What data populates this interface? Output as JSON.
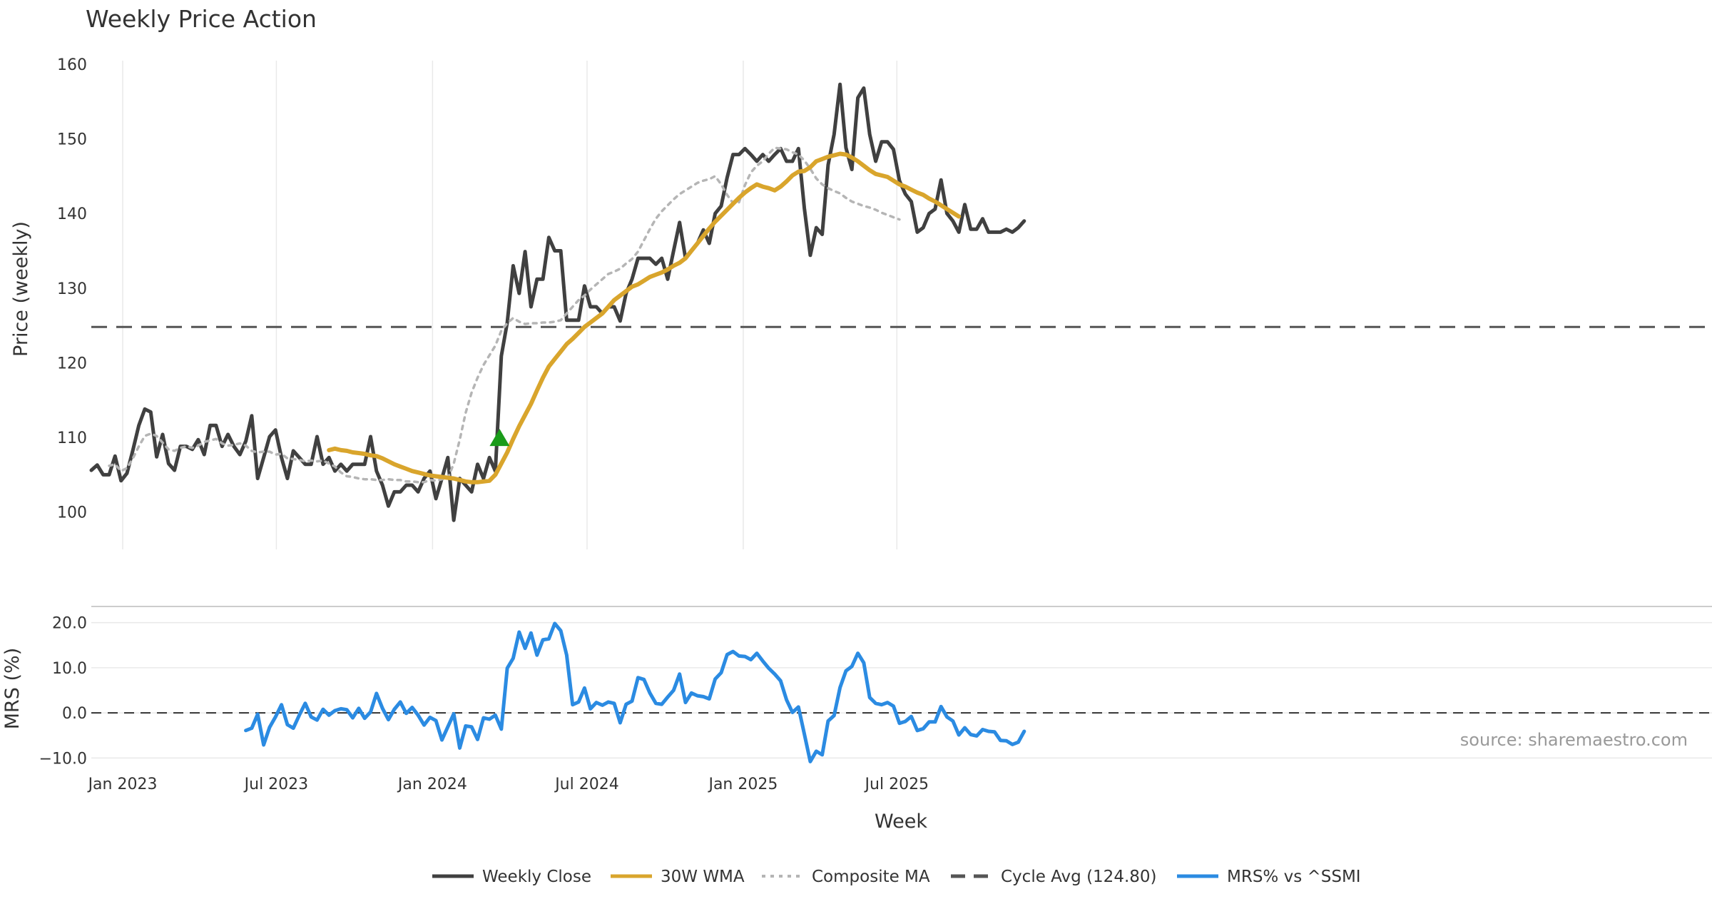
{
  "chart_data": [
    {
      "type": "line",
      "title": "Weekly Price Action",
      "xlabel": "",
      "ylabel": "Price (weekly)",
      "ylim": [
        95,
        160
      ],
      "yticks": [
        100,
        110,
        120,
        130,
        140,
        150,
        160
      ],
      "x_start": "2022-11-25",
      "x_step_days": 7,
      "x_tick_labels": [
        "Jan 2023",
        "Jul 2023",
        "Jan 2024",
        "Jul 2024",
        "Jan 2025",
        "Jul 2025"
      ],
      "x_tick_dates": [
        "2023-01-01",
        "2023-07-01",
        "2024-01-01",
        "2024-07-01",
        "2025-01-01",
        "2025-07-01"
      ],
      "grid": true,
      "reference_line": {
        "name": "Cycle Avg (124.80)",
        "value": 124.8
      },
      "markers": [
        {
          "type": "buy-signal",
          "date": "2024-03-20",
          "value": 110
        }
      ],
      "series": [
        {
          "name": "Weekly Close",
          "color": "#404040",
          "style": "solid",
          "start_index": 0,
          "values": [
            105.6,
            106.3,
            105.0,
            105.0,
            107.5,
            104.2,
            105.2,
            108.3,
            111.6,
            113.8,
            113.4,
            107.4,
            110.4,
            106.5,
            105.6,
            108.8,
            108.8,
            108.4,
            109.7,
            107.7,
            111.6,
            111.6,
            108.8,
            110.4,
            108.8,
            107.7,
            109.5,
            112.9,
            104.5,
            107.3,
            110.1,
            111.0,
            107.3,
            104.5,
            108.2,
            107.3,
            106.4,
            106.4,
            110.1,
            106.4,
            107.3,
            105.5,
            106.4,
            105.5,
            106.4,
            106.4,
            106.4,
            110.1,
            105.5,
            103.6,
            100.8,
            102.7,
            102.7,
            103.6,
            103.6,
            102.7,
            104.5,
            105.5,
            101.8,
            104.5,
            107.3,
            98.9,
            104.5,
            103.6,
            102.7,
            106.4,
            104.5,
            107.3,
            105.5,
            120.9,
            125.4,
            133.0,
            129.3,
            134.9,
            127.5,
            131.2,
            131.2,
            136.8,
            135.0,
            135.0,
            125.7,
            125.7,
            125.7,
            130.3,
            127.5,
            127.5,
            126.6,
            127.5,
            127.5,
            125.6,
            129.3,
            131.2,
            134.0,
            134.0,
            134.0,
            133.2,
            134.0,
            131.2,
            135.0,
            138.8,
            134.0,
            135.0,
            136.0,
            137.8,
            136.0,
            140.0,
            141.0,
            144.8,
            147.9,
            147.9,
            148.7,
            147.9,
            147.0,
            147.9,
            147.0,
            147.9,
            148.7,
            147.0,
            147.0,
            148.7,
            140.7,
            134.4,
            138.1,
            137.2,
            146.5,
            150.6,
            157.3,
            148.8,
            145.9,
            155.5,
            156.8,
            150.6,
            147.0,
            149.6,
            149.6,
            148.6,
            144.4,
            142.6,
            141.6,
            137.5,
            138.1,
            140.0,
            140.6,
            144.5,
            140.0,
            139.0,
            137.5,
            141.2,
            137.9,
            137.9,
            139.3,
            137.5,
            137.5,
            137.5,
            137.9,
            137.5,
            138.1,
            139.0
          ]
        },
        {
          "name": "30W WMA",
          "color": "#d9a52c",
          "style": "solid",
          "start_index": 40,
          "values": [
            108.3,
            108.5,
            108.3,
            108.2,
            108.0,
            107.9,
            107.8,
            107.6,
            107.5,
            107.2,
            106.8,
            106.4,
            106.1,
            105.8,
            105.5,
            105.3,
            105.1,
            104.9,
            104.8,
            104.7,
            104.6,
            104.5,
            104.3,
            104.1,
            104.0,
            104.0,
            104.1,
            104.2,
            105.0,
            106.5,
            108.0,
            109.8,
            111.5,
            113.0,
            114.5,
            116.3,
            118.0,
            119.5,
            120.5,
            121.5,
            122.5,
            123.2,
            124.0,
            124.8,
            125.4,
            126.0,
            126.6,
            127.5,
            128.4,
            129.0,
            129.6,
            130.2,
            130.5,
            131.0,
            131.5,
            131.8,
            132.1,
            132.5,
            133.0,
            133.4,
            134.0,
            135.0,
            136.0,
            137.0,
            138.0,
            138.9,
            139.7,
            140.5,
            141.3,
            142.1,
            142.8,
            143.4,
            143.9,
            143.6,
            143.4,
            143.1,
            143.6,
            144.3,
            145.1,
            145.6,
            145.7,
            146.2,
            147.0,
            147.3,
            147.6,
            147.8,
            148.0,
            147.9,
            147.5,
            147.0,
            146.4,
            145.8,
            145.3,
            145.1,
            144.9,
            144.4,
            143.9,
            143.6,
            143.2,
            142.8,
            142.5,
            142.0,
            141.6,
            141.1,
            140.6,
            140.1,
            139.6
          ]
        },
        {
          "name": "Composite MA",
          "color": "#b5b5b5",
          "style": "dotted",
          "start_index": 3,
          "values": [
            106.2,
            106.4,
            105.5,
            105.9,
            107.2,
            108.8,
            110.2,
            110.5,
            110.2,
            109.3,
            108.4,
            108.2,
            108.6,
            108.8,
            108.6,
            108.9,
            109.4,
            109.6,
            109.8,
            109.2,
            108.9,
            109.0,
            109.2,
            108.9,
            108.2,
            108.0,
            108.1,
            108.1,
            107.7,
            107.8,
            107.2,
            107.1,
            107.0,
            106.8,
            106.9,
            106.8,
            106.9,
            106.5,
            106.1,
            105.3,
            104.8,
            104.7,
            104.5,
            104.4,
            104.4,
            104.3,
            104.3,
            104.4,
            104.3,
            104.3,
            104.1,
            104.1,
            104.0,
            104.0,
            104.3,
            104.2,
            104.4,
            104.5,
            106.5,
            109.7,
            113.3,
            116.0,
            118.0,
            119.7,
            121.0,
            122.3,
            124.3,
            125.3,
            126.0,
            125.5,
            125.2,
            125.3,
            125.3,
            125.4,
            125.4,
            125.5,
            125.7,
            126.6,
            127.5,
            128.4,
            129.0,
            129.8,
            130.5,
            131.2,
            131.9,
            132.2,
            132.6,
            133.3,
            133.9,
            134.9,
            136.4,
            137.9,
            139.3,
            140.3,
            141.1,
            141.9,
            142.6,
            143.1,
            143.6,
            144.1,
            144.4,
            144.6,
            145.0,
            143.9,
            142.5,
            141.4,
            141.5,
            143.8,
            145.5,
            146.4,
            147.0,
            148.0,
            148.8,
            148.7,
            148.6,
            148.2,
            147.9,
            147.1,
            146.0,
            144.7,
            143.9,
            143.4,
            143.0,
            142.7,
            142.1,
            141.6,
            141.3,
            141.0,
            140.8,
            140.5,
            140.1,
            139.8,
            139.5,
            139.2
          ]
        }
      ]
    },
    {
      "type": "line",
      "xlabel": "Week",
      "ylabel": "MRS (%)",
      "ylim": [
        -12,
        22
      ],
      "yticks": [
        20,
        10,
        0,
        -10
      ],
      "ytick_labels": [
        "20.0",
        "10.0",
        "0.0",
        "−10.0"
      ],
      "reference_line": {
        "value": 0
      },
      "series": [
        {
          "name": "MRS% vs ^SSMI",
          "color": "#2b8be2",
          "style": "solid",
          "start_index": 26,
          "values": [
            -3.9,
            -3.4,
            -0.3,
            -7.1,
            -3.2,
            -0.9,
            1.8,
            -2.6,
            -3.4,
            -0.5,
            2.1,
            -0.9,
            -1.6,
            0.8,
            -0.5,
            0.5,
            0.9,
            0.7,
            -1.1,
            1.0,
            -1.2,
            0.2,
            4.3,
            1.0,
            -1.5,
            0.8,
            2.4,
            -0.1,
            1.2,
            -0.5,
            -2.7,
            -1.0,
            -1.7,
            -6.0,
            -3.1,
            -0.2,
            -7.8,
            -2.9,
            -3.1,
            -5.9,
            -1.1,
            -1.4,
            -0.5,
            -3.6,
            9.9,
            12.1,
            17.9,
            14.3,
            17.7,
            12.8,
            16.2,
            16.4,
            19.8,
            18.2,
            12.8,
            1.8,
            2.4,
            5.5,
            0.9,
            2.3,
            1.7,
            2.4,
            2.1,
            -2.2,
            1.9,
            2.6,
            7.8,
            7.4,
            4.4,
            2.1,
            1.9,
            3.5,
            5.0,
            8.6,
            2.3,
            4.4,
            3.8,
            3.6,
            3.1,
            7.5,
            8.9,
            12.9,
            13.6,
            12.6,
            12.5,
            11.8,
            13.2,
            11.5,
            9.9,
            8.6,
            7.1,
            2.9,
            0.1,
            1.3,
            -4.7,
            -10.8,
            -8.5,
            -9.3,
            -1.8,
            -0.6,
            5.6,
            9.3,
            10.3,
            13.2,
            11.1,
            3.4,
            2.1,
            1.8,
            2.3,
            1.5,
            -2.3,
            -1.9,
            -0.8,
            -3.9,
            -3.5,
            -2.0,
            -2.0,
            1.4,
            -0.9,
            -1.8,
            -4.9,
            -3.3,
            -4.8,
            -5.1,
            -3.7,
            -4.1,
            -4.2,
            -6.1,
            -6.2,
            -7.0,
            -6.5,
            -4.1
          ]
        }
      ]
    }
  ],
  "legend": {
    "position": "bottom",
    "items": [
      {
        "label": "Weekly Close",
        "color": "#404040",
        "style": "solid"
      },
      {
        "label": "30W WMA",
        "color": "#d9a52c",
        "style": "solid"
      },
      {
        "label": "Composite MA",
        "color": "#b5b5b5",
        "style": "dotted"
      },
      {
        "label": "Cycle Avg (124.80)",
        "color": "#555555",
        "style": "dashed"
      },
      {
        "label": "MRS% vs ^SSMI",
        "color": "#2b8be2",
        "style": "solid"
      }
    ]
  },
  "source": "source: sharemaestro.com",
  "colors": {
    "buy_marker": "#1a9b1a",
    "grid": "#e9e9e9",
    "reference": "#555555"
  }
}
